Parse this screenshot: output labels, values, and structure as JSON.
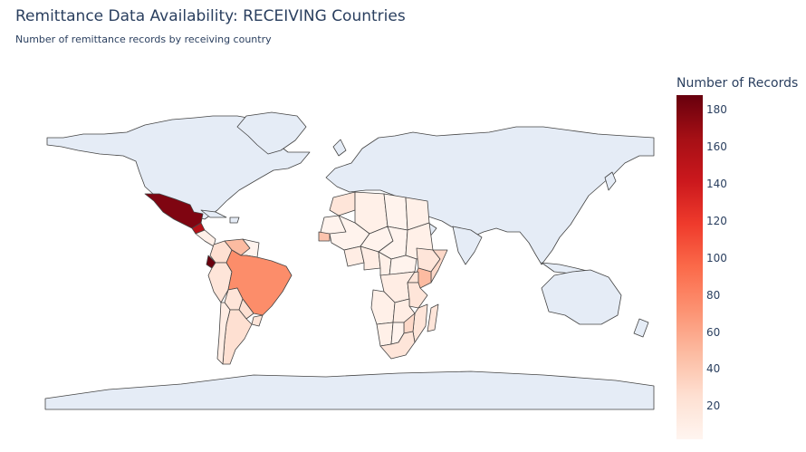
{
  "header": {
    "title": "Remittance Data Availability: RECEIVING Countries",
    "subtitle": "Number of remittance records by receiving country"
  },
  "colorbar": {
    "title": "Number of Records",
    "min": 2,
    "max": 188,
    "ticks": [
      "180",
      "160",
      "140",
      "120",
      "100",
      "80",
      "60",
      "40",
      "20"
    ],
    "tick_values": [
      180,
      160,
      140,
      120,
      100,
      80,
      60,
      40,
      20
    ],
    "colorscale": [
      "#fff5f0",
      "#fee0d2",
      "#fcbba1",
      "#fc9272",
      "#fb6a4a",
      "#ef3b2c",
      "#cb181d",
      "#a50f15",
      "#67000d"
    ]
  },
  "map": {
    "projection": "equirectangular",
    "no_data_color": "#e5ecf6",
    "border_color": "#444444"
  },
  "chart_data": {
    "type": "choropleth",
    "title": "Remittance Data Availability: RECEIVING Countries",
    "subtitle": "Number of remittance records by receiving country",
    "colorbar_title": "Number of Records",
    "zrange": [
      2,
      188
    ],
    "locations": [
      {
        "country": "Mexico",
        "value": 180
      },
      {
        "country": "Guatemala",
        "value": 160
      },
      {
        "country": "Ecuador",
        "value": 185
      },
      {
        "country": "Brazil",
        "value": 95
      },
      {
        "country": "Venezuela",
        "value": 45
      },
      {
        "country": "Colombia",
        "value": 30
      },
      {
        "country": "Peru",
        "value": 20
      },
      {
        "country": "Bolivia",
        "value": 15
      },
      {
        "country": "Paraguay",
        "value": 20
      },
      {
        "country": "Uruguay",
        "value": 15
      },
      {
        "country": "Argentina",
        "value": 20
      },
      {
        "country": "Chile",
        "value": 12
      },
      {
        "country": "Kenya",
        "value": 40
      },
      {
        "country": "Senegal",
        "value": 30
      },
      {
        "country": "Morocco",
        "value": 12
      },
      {
        "country": "Algeria",
        "value": 8
      },
      {
        "country": "Libya",
        "value": 6
      },
      {
        "country": "Egypt",
        "value": 8
      },
      {
        "country": "Mali",
        "value": 6
      },
      {
        "country": "Niger",
        "value": 6
      },
      {
        "country": "Chad",
        "value": 6
      },
      {
        "country": "Sudan",
        "value": 8
      },
      {
        "country": "Ethiopia",
        "value": 12
      },
      {
        "country": "Somalia",
        "value": 15
      },
      {
        "country": "Nigeria",
        "value": 10
      },
      {
        "country": "Ghana",
        "value": 10
      },
      {
        "country": "Cameroon",
        "value": 8
      },
      {
        "country": "DR Congo",
        "value": 10
      },
      {
        "country": "Tanzania",
        "value": 12
      },
      {
        "country": "Uganda",
        "value": 15
      },
      {
        "country": "Angola",
        "value": 8
      },
      {
        "country": "Zambia",
        "value": 10
      },
      {
        "country": "Zimbabwe",
        "value": 20
      },
      {
        "country": "Mozambique",
        "value": 12
      },
      {
        "country": "Namibia",
        "value": 8
      },
      {
        "country": "South Africa",
        "value": 12
      },
      {
        "country": "Madagascar",
        "value": 15
      },
      {
        "country": "Philippines",
        "value": 8
      }
    ]
  }
}
